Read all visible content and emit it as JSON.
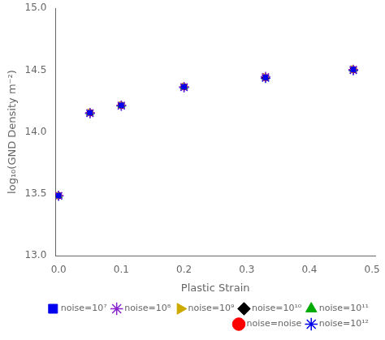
{
  "chart_data": {
    "type": "scatter",
    "x_label": "Plastic Strain",
    "y_label": "log₁₀(GND Density m⁻²)",
    "x": [
      0.0,
      0.05,
      0.1,
      0.2,
      0.33,
      0.47
    ],
    "series": [
      {
        "name": "noise=10⁷",
        "color": "#0000ee",
        "marker": "square",
        "values": [
          13.485,
          14.155,
          14.215,
          14.365,
          14.44,
          14.505
        ]
      },
      {
        "name": "noise=10⁸",
        "color": "#8822cc",
        "marker": "star",
        "values": [
          13.485,
          14.155,
          14.215,
          14.365,
          14.447,
          14.505
        ]
      },
      {
        "name": "noise=10⁹",
        "color": "#ccaa00",
        "marker": "triangle_right",
        "values": [
          13.485,
          14.158,
          14.218,
          14.368,
          14.445,
          14.508
        ]
      },
      {
        "name": "noise=10¹⁰",
        "color": "#000000",
        "marker": "diamond",
        "values": [
          13.485,
          14.155,
          14.215,
          14.365,
          14.44,
          14.505
        ]
      },
      {
        "name": "noise=10¹¹",
        "color": "#00aa00",
        "marker": "triangle",
        "values": [
          13.485,
          14.155,
          14.215,
          14.365,
          14.44,
          14.505
        ]
      },
      {
        "name": "noise=noise",
        "color": "#ff0000",
        "marker": "circle",
        "values": [
          13.485,
          14.155,
          14.215,
          14.365,
          14.44,
          14.505
        ]
      },
      {
        "name": "noise=10¹²",
        "color": "#0000ee",
        "marker": "star",
        "values": [
          13.482,
          14.15,
          14.21,
          14.36,
          14.435,
          14.498
        ]
      }
    ],
    "xlim": [
      -0.005,
      0.505
    ],
    "ylim": [
      13.0,
      15.0
    ],
    "xticks": [
      {
        "value": 0.0,
        "label": "0.0"
      },
      0.1,
      0.2,
      0.3,
      0.4,
      0.5
    ],
    "yticks": [
      {
        "value": 13.0,
        "label": "13.0"
      },
      13.5,
      {
        "value": 14.0,
        "label": "14.0"
      },
      14.5,
      {
        "value": 15.0,
        "label": "15.0"
      }
    ],
    "grid": false,
    "legend": "lower right"
  }
}
